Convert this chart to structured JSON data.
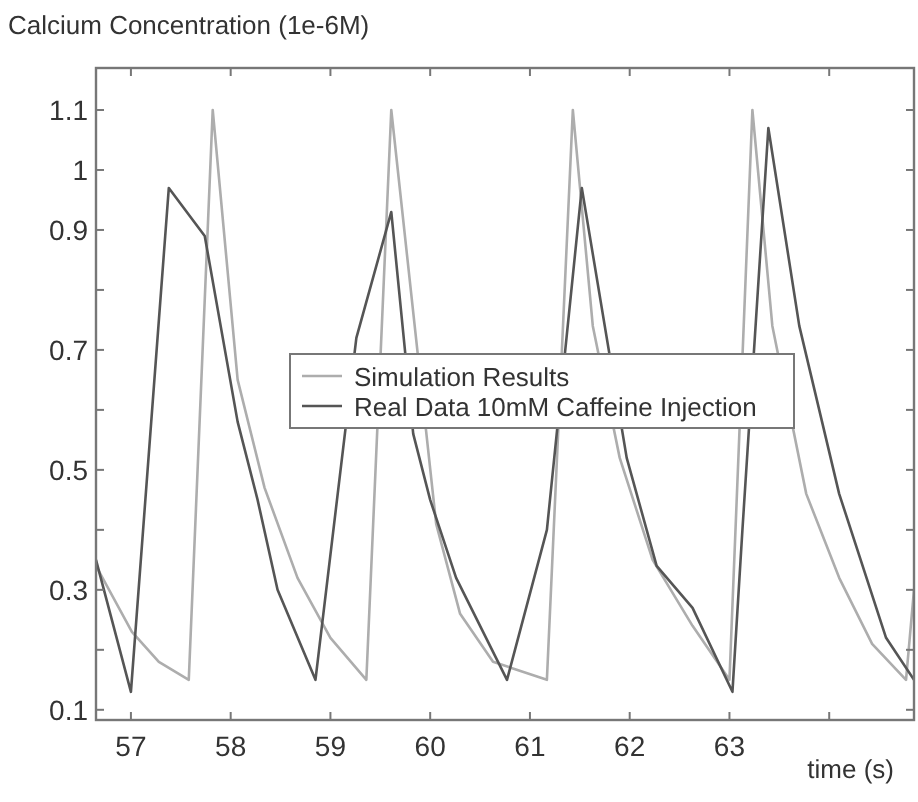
{
  "chart_data": {
    "type": "line",
    "ylabel": "Calcium Concentration (1e-6M)",
    "xlabel": "time (s)",
    "xlim": [
      56.65,
      64.85
    ],
    "ylim": [
      0.083,
      1.17
    ],
    "xticks": [
      57,
      58,
      59,
      60,
      61,
      62,
      63,
      {
        "value": 64,
        "label": null
      }
    ],
    "yticks": [
      0.1,
      {
        "value": 0.2,
        "label": null
      },
      0.3,
      {
        "value": 0.4,
        "label": null
      },
      0.5,
      {
        "value": 0.6,
        "label": null
      },
      0.7,
      {
        "value": 0.8,
        "label": null
      },
      0.9,
      1,
      1.1
    ],
    "grid": false,
    "legend": "center",
    "marker": "none",
    "line_style": "solid",
    "series": [
      {
        "name": "Simulation Results",
        "color": "#adadad",
        "x": [
          56.65,
          57.01,
          57.28,
          57.58,
          57.82,
          58.07,
          58.34,
          58.67,
          59.0,
          59.36,
          59.61,
          60.06,
          60.3,
          60.63,
          61.17,
          61.43,
          61.63,
          61.9,
          62.23,
          62.63,
          63.0,
          63.23,
          63.43,
          63.77,
          64.1,
          64.43,
          64.77,
          64.85
        ],
        "values": [
          0.34,
          0.23,
          0.18,
          0.15,
          1.1,
          0.65,
          0.47,
          0.32,
          0.22,
          0.15,
          1.1,
          0.41,
          0.26,
          0.18,
          0.15,
          1.1,
          0.74,
          0.52,
          0.35,
          0.24,
          0.15,
          1.1,
          0.74,
          0.46,
          0.32,
          0.21,
          0.15,
          0.3
        ]
      },
      {
        "name": "Real Data 10mM Caffeine Injection",
        "color": "#555555",
        "x": [
          56.65,
          57.0,
          57.38,
          57.74,
          58.07,
          58.27,
          58.47,
          58.85,
          59.26,
          59.61,
          59.83,
          60.0,
          60.26,
          60.77,
          61.17,
          61.52,
          61.97,
          62.27,
          62.63,
          63.03,
          63.13,
          63.39,
          63.7,
          64.1,
          64.57,
          64.85
        ],
        "values": [
          0.35,
          0.13,
          0.97,
          0.89,
          0.58,
          0.45,
          0.3,
          0.15,
          0.72,
          0.93,
          0.56,
          0.45,
          0.32,
          0.15,
          0.4,
          0.97,
          0.52,
          0.34,
          0.27,
          0.13,
          0.4,
          1.07,
          0.74,
          0.46,
          0.22,
          0.15
        ]
      }
    ]
  }
}
